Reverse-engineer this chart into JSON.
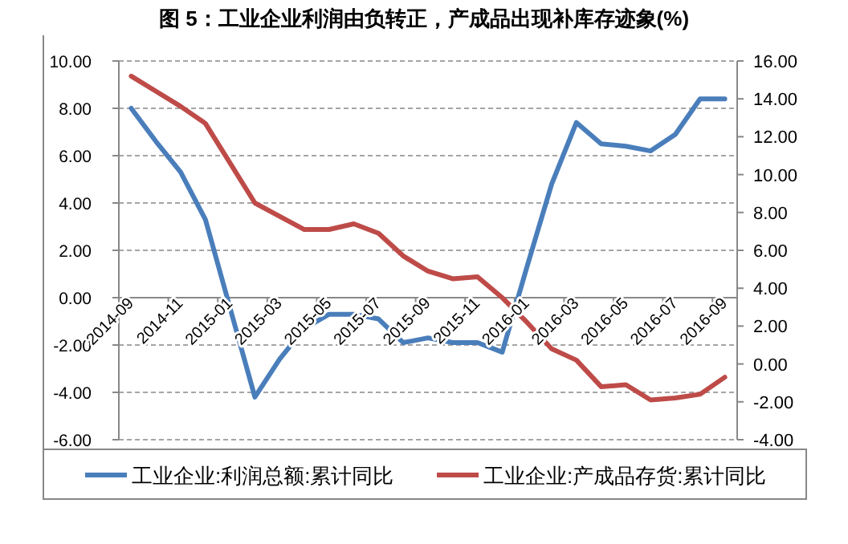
{
  "chart_data": {
    "type": "line",
    "title": "图 5：工业企业利润由负转正，产成品出现补库存迹象(%)",
    "categories": [
      "2014-09",
      null,
      "2014-11",
      null,
      "2015-01",
      null,
      "2015-03",
      null,
      "2015-05",
      null,
      "2015-07",
      null,
      "2015-09",
      null,
      "2015-11",
      null,
      "2016-01",
      null,
      "2016-03",
      null,
      "2016-05",
      null,
      "2016-07",
      null,
      "2016-09"
    ],
    "series": [
      {
        "name": "工业企业:利润总额:累计同比",
        "color": "#4a7ebb",
        "values": [
          8.0,
          6.6,
          5.3,
          3.3,
          -0.45,
          -4.2,
          -2.6,
          -1.3,
          -0.7,
          -0.7,
          -0.9,
          -1.9,
          -1.7,
          -1.9,
          -1.9,
          -2.3,
          1.3,
          4.8,
          7.4,
          6.5,
          6.4,
          6.2,
          6.9,
          8.4,
          8.4
        ]
      },
      {
        "name": "工业企业:产成品存货:累计同比",
        "color": "#be4b48",
        "axis": "y2",
        "values": [
          15.2,
          14.4,
          13.6,
          12.7,
          10.6,
          8.5,
          7.8,
          7.1,
          7.1,
          7.4,
          6.9,
          5.7,
          4.9,
          4.5,
          4.6,
          3.5,
          2.2,
          0.8,
          0.2,
          -1.2,
          -1.1,
          -1.9,
          -1.8,
          -1.6,
          -0.7
        ]
      }
    ],
    "ylim": [
      -6,
      10
    ],
    "yticks": [
      {
        "value": -6,
        "label": "-6.00"
      },
      {
        "value": -4,
        "label": "-4.00"
      },
      {
        "value": -2,
        "label": "-2.00"
      },
      {
        "value": 0,
        "label": "0.00"
      },
      {
        "value": 2,
        "label": "2.00"
      },
      {
        "value": 4,
        "label": "4.00"
      },
      {
        "value": 6,
        "label": "6.00"
      },
      {
        "value": 8,
        "label": "8.00"
      },
      {
        "value": 10,
        "label": "10.00"
      }
    ],
    "y2lim": [
      -4,
      16
    ],
    "y2ticks": [
      {
        "value": -4,
        "label": "-4.00"
      },
      {
        "value": -2,
        "label": "-2.00"
      },
      {
        "value": 0,
        "label": "0.00"
      },
      {
        "value": 2,
        "label": "2.00"
      },
      {
        "value": 4,
        "label": "4.00"
      },
      {
        "value": 6,
        "label": "6.00"
      },
      {
        "value": 8,
        "label": "8.00"
      },
      {
        "value": 10,
        "label": "10.00"
      },
      {
        "value": 12,
        "label": "12.00"
      },
      {
        "value": 14,
        "label": "14.00"
      },
      {
        "value": 16,
        "label": "16.00"
      }
    ],
    "grid": "y",
    "legend": "bottom",
    "marker": "none",
    "line_style": "solid"
  }
}
